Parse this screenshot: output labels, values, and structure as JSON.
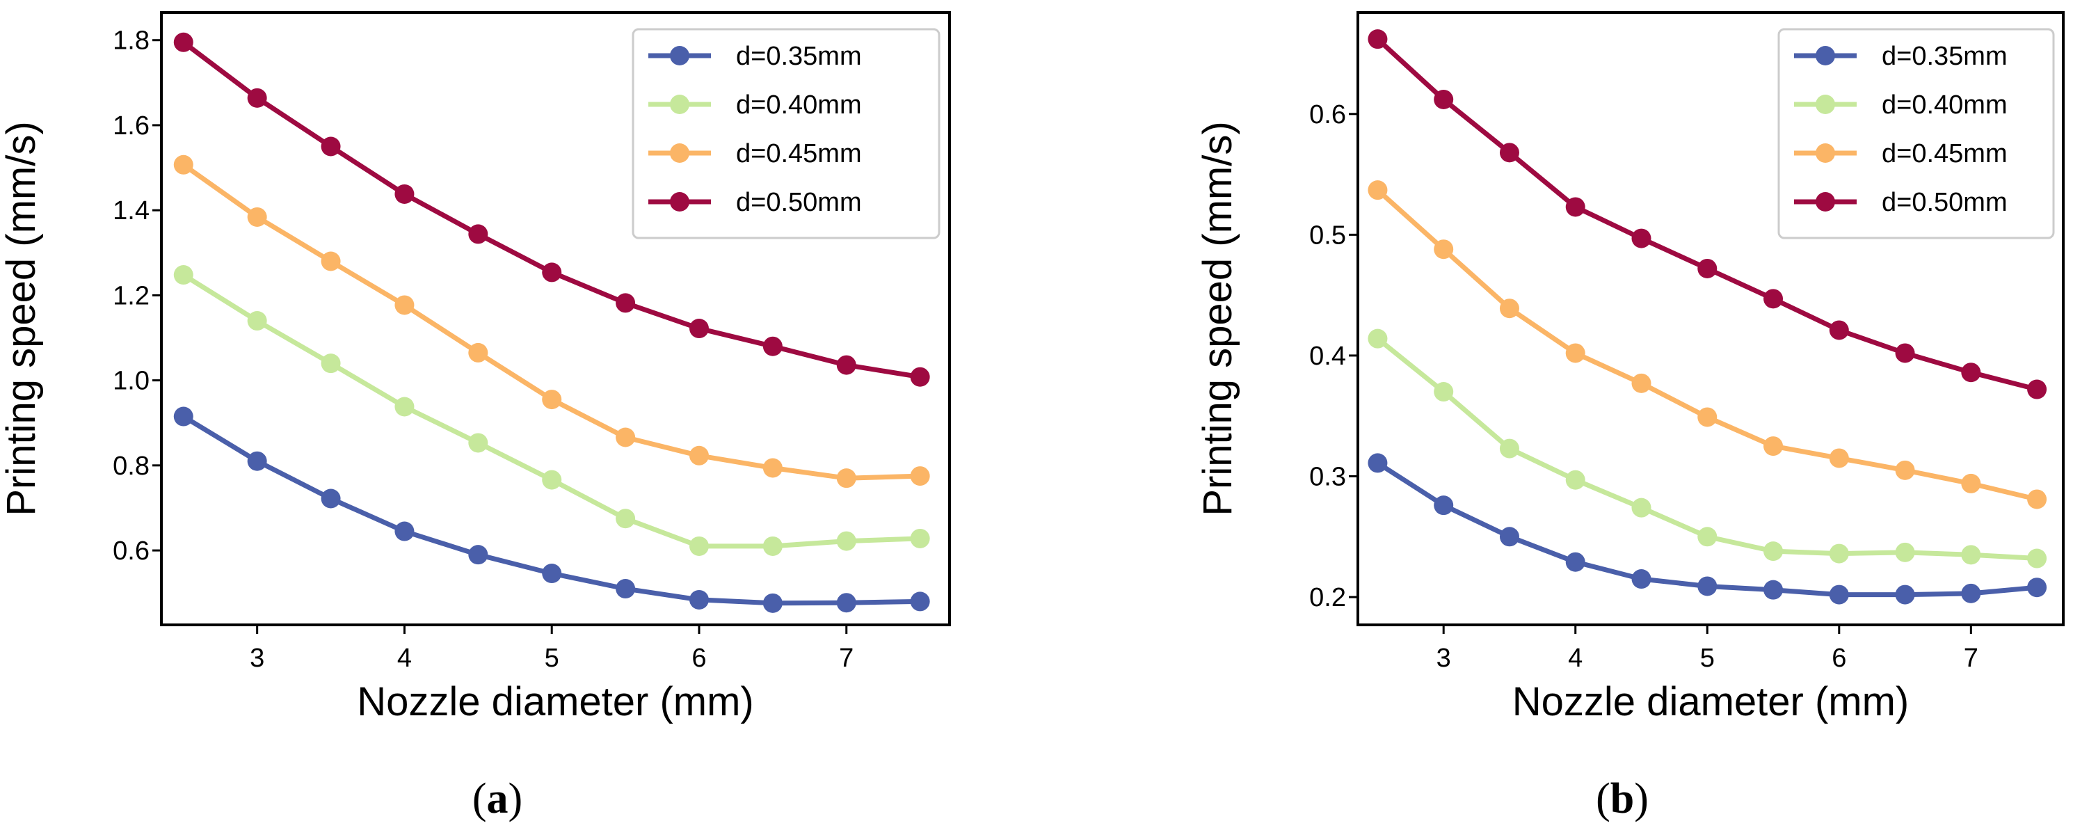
{
  "chart_data": [
    {
      "type": "line",
      "panel_label": "a",
      "xlabel": "Nozzle diameter (mm)",
      "ylabel": "Printing speed (mm/s)",
      "xlim": [
        2.35,
        7.7
      ],
      "ylim": [
        0.425,
        1.865
      ],
      "xticks": [
        3,
        4,
        5,
        6,
        7
      ],
      "yticks": [
        0.6,
        0.8,
        1.0,
        1.2,
        1.4,
        1.6,
        1.8
      ],
      "ytick_labels": [
        "0.6",
        "0.8",
        "1.0",
        "1.2",
        "1.4",
        "1.6",
        "1.8"
      ],
      "legend_position": "top-right",
      "x": [
        2.5,
        3.0,
        3.5,
        4.0,
        4.5,
        5.0,
        5.5,
        6.0,
        6.5,
        7.0,
        7.5
      ],
      "series": [
        {
          "name": "d=0.35mm",
          "color": "#4a5faa",
          "values": [
            0.915,
            0.81,
            0.722,
            0.645,
            0.59,
            0.546,
            0.51,
            0.484,
            0.476,
            0.477,
            0.48
          ]
        },
        {
          "name": "d=0.40mm",
          "color": "#c6e89b",
          "values": [
            1.248,
            1.14,
            1.04,
            0.938,
            0.853,
            0.766,
            0.675,
            0.61,
            0.61,
            0.622,
            0.628
          ]
        },
        {
          "name": "d=0.45mm",
          "color": "#fbb566",
          "values": [
            1.507,
            1.384,
            1.28,
            1.177,
            1.065,
            0.955,
            0.866,
            0.823,
            0.794,
            0.77,
            0.775
          ]
        },
        {
          "name": "d=0.50mm",
          "color": "#9e0a41",
          "values": [
            1.795,
            1.664,
            1.55,
            1.438,
            1.344,
            1.254,
            1.182,
            1.122,
            1.08,
            1.036,
            1.008
          ]
        }
      ]
    },
    {
      "type": "line",
      "panel_label": "b",
      "xlabel": "Nozzle diameter (mm)",
      "ylabel": "Printing speed (mm/s)",
      "xlim": [
        2.35,
        7.7
      ],
      "ylim": [
        0.177,
        0.684
      ],
      "xticks": [
        3,
        4,
        5,
        6,
        7
      ],
      "yticks": [
        0.2,
        0.3,
        0.4,
        0.5,
        0.6
      ],
      "ytick_labels": [
        "0.2",
        "0.3",
        "0.4",
        "0.5",
        "0.6"
      ],
      "legend_position": "top-right",
      "x": [
        2.5,
        3.0,
        3.5,
        4.0,
        4.5,
        5.0,
        5.5,
        6.0,
        6.5,
        7.0,
        7.5
      ],
      "series": [
        {
          "name": "d=0.35mm",
          "color": "#4a5faa",
          "values": [
            0.311,
            0.276,
            0.25,
            0.229,
            0.215,
            0.209,
            0.206,
            0.202,
            0.202,
            0.203,
            0.208
          ]
        },
        {
          "name": "d=0.40mm",
          "color": "#c6e89b",
          "values": [
            0.414,
            0.37,
            0.323,
            0.297,
            0.274,
            0.25,
            0.238,
            0.236,
            0.237,
            0.235,
            0.232
          ]
        },
        {
          "name": "d=0.45mm",
          "color": "#fbb566",
          "values": [
            0.537,
            0.488,
            0.439,
            0.402,
            0.377,
            0.349,
            0.325,
            0.315,
            0.305,
            0.294,
            0.281
          ]
        },
        {
          "name": "d=0.50mm",
          "color": "#9e0a41",
          "values": [
            0.662,
            0.612,
            0.568,
            0.523,
            0.497,
            0.472,
            0.447,
            0.421,
            0.402,
            0.386,
            0.372
          ]
        }
      ]
    }
  ]
}
